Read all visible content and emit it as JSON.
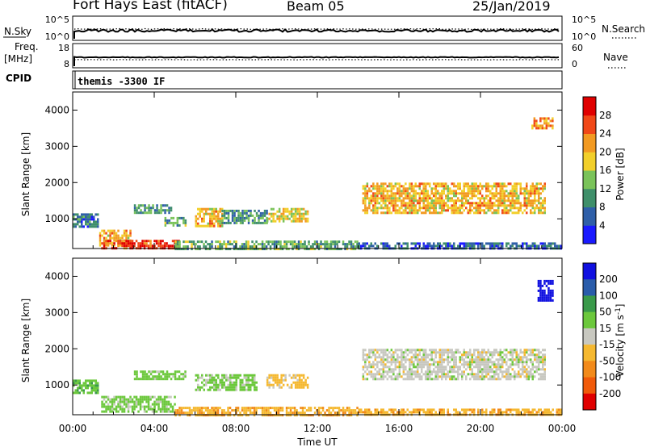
{
  "header": {
    "station": "Fort Hays East (fitACF)",
    "beam": "Beam 05",
    "date": "25/Jan/2019"
  },
  "strip_panels": {
    "noise": {
      "left_label": "N.Sky",
      "left_ticks": [
        "10^5",
        "10^0"
      ],
      "right_ticks": [
        "10^5",
        "10^0"
      ],
      "right_label": "N.Search"
    },
    "freq": {
      "left_label_1": "Freq.",
      "left_label_2": "[MHz]",
      "left_ticks": [
        "18",
        "8"
      ],
      "right_ticks": [
        "60",
        "0"
      ],
      "right_label": "Nave"
    },
    "cpid": {
      "left_label": "CPID",
      "text": "themis -3300 IF"
    }
  },
  "time_axis": {
    "label": "Time UT",
    "tick_labels": [
      "00:00",
      "04:00",
      "08:00",
      "12:00",
      "16:00",
      "20:00",
      "00:00"
    ]
  },
  "chart_data": [
    {
      "type": "heatmap",
      "panel": "power",
      "ylabel": "Slant Range [km]",
      "y_ticks": [
        1000,
        2000,
        3000,
        4000
      ],
      "xlim_hours": [
        0,
        24
      ],
      "ylim_km": [
        180,
        4500
      ],
      "colorbar": {
        "label": "Power [dB]",
        "tick_labels": [
          "4",
          "8",
          "12",
          "16",
          "20",
          "24",
          "28"
        ],
        "colors": [
          "#1a1aff",
          "#2f5fa8",
          "#3f8f6a",
          "#7ac35a",
          "#f2cf2a",
          "#f29a22",
          "#f04818",
          "#e00000"
        ]
      },
      "features": [
        {
          "t_start": 0.0,
          "t_end": 1.2,
          "r_low": 750,
          "r_high": 1150,
          "value": 8
        },
        {
          "t_start": 1.3,
          "t_end": 2.8,
          "r_low": 250,
          "r_high": 700,
          "value": 20
        },
        {
          "t_start": 1.4,
          "t_end": 5.2,
          "r_low": 180,
          "r_high": 420,
          "value": 28
        },
        {
          "t_start": 3.0,
          "t_end": 4.8,
          "r_low": 1150,
          "r_high": 1400,
          "value": 10
        },
        {
          "t_start": 4.5,
          "t_end": 5.5,
          "r_low": 800,
          "r_high": 1050,
          "value": 12
        },
        {
          "t_start": 6.0,
          "t_end": 7.3,
          "r_low": 800,
          "r_high": 1300,
          "value": 20
        },
        {
          "t_start": 7.3,
          "t_end": 9.5,
          "r_low": 850,
          "r_high": 1250,
          "value": 10
        },
        {
          "t_start": 9.5,
          "t_end": 11.5,
          "r_low": 900,
          "r_high": 1300,
          "value": 18
        },
        {
          "t_start": 5.0,
          "t_end": 14.0,
          "r_low": 180,
          "r_high": 400,
          "value": 12
        },
        {
          "t_start": 14.2,
          "t_end": 23.2,
          "r_low": 1150,
          "r_high": 2000,
          "value": 20
        },
        {
          "t_start": 22.5,
          "t_end": 23.5,
          "r_low": 3500,
          "r_high": 3800,
          "value": 22
        },
        {
          "t_start": 14.0,
          "t_end": 24.0,
          "r_low": 180,
          "r_high": 350,
          "value": 6
        }
      ]
    },
    {
      "type": "heatmap",
      "panel": "velocity",
      "ylabel": "Slant Range [km]",
      "y_ticks": [
        1000,
        2000,
        3000,
        4000
      ],
      "xlim_hours": [
        0,
        24
      ],
      "ylim_km": [
        180,
        4500
      ],
      "colorbar": {
        "label": "Velocity [m s^-1]",
        "label_main": "Velocity [m s",
        "label_sup": "-1",
        "label_close": "]",
        "tick_labels": [
          "200",
          "100",
          "50",
          "15",
          "-15",
          "-50",
          "-100",
          "-200"
        ],
        "colors": [
          "#1010e0",
          "#2a5caa",
          "#3a9a4a",
          "#6cc83c",
          "#c8c8c0",
          "#f5b830",
          "#f28a1a",
          "#f05a0a",
          "#e00000"
        ]
      },
      "features": [
        {
          "t_start": 0.0,
          "t_end": 1.2,
          "r_low": 750,
          "r_high": 1150,
          "value": 40
        },
        {
          "t_start": 1.4,
          "t_end": 5.0,
          "r_low": 250,
          "r_high": 700,
          "value": 30
        },
        {
          "t_start": 3.0,
          "t_end": 5.5,
          "r_low": 1150,
          "r_high": 1400,
          "value": 30
        },
        {
          "t_start": 6.0,
          "t_end": 9.0,
          "r_low": 850,
          "r_high": 1300,
          "value": 25
        },
        {
          "t_start": 9.5,
          "t_end": 11.5,
          "r_low": 900,
          "r_high": 1300,
          "value": -30
        },
        {
          "t_start": 5.0,
          "t_end": 14.0,
          "r_low": 180,
          "r_high": 400,
          "value": -40
        },
        {
          "t_start": 14.2,
          "t_end": 23.2,
          "r_low": 1150,
          "r_high": 2000,
          "value": 0
        },
        {
          "t_start": 22.8,
          "t_end": 23.5,
          "r_low": 3300,
          "r_high": 3900,
          "value": 220
        },
        {
          "t_start": 14.0,
          "t_end": 24.0,
          "r_low": 180,
          "r_high": 350,
          "value": -40
        }
      ]
    }
  ]
}
